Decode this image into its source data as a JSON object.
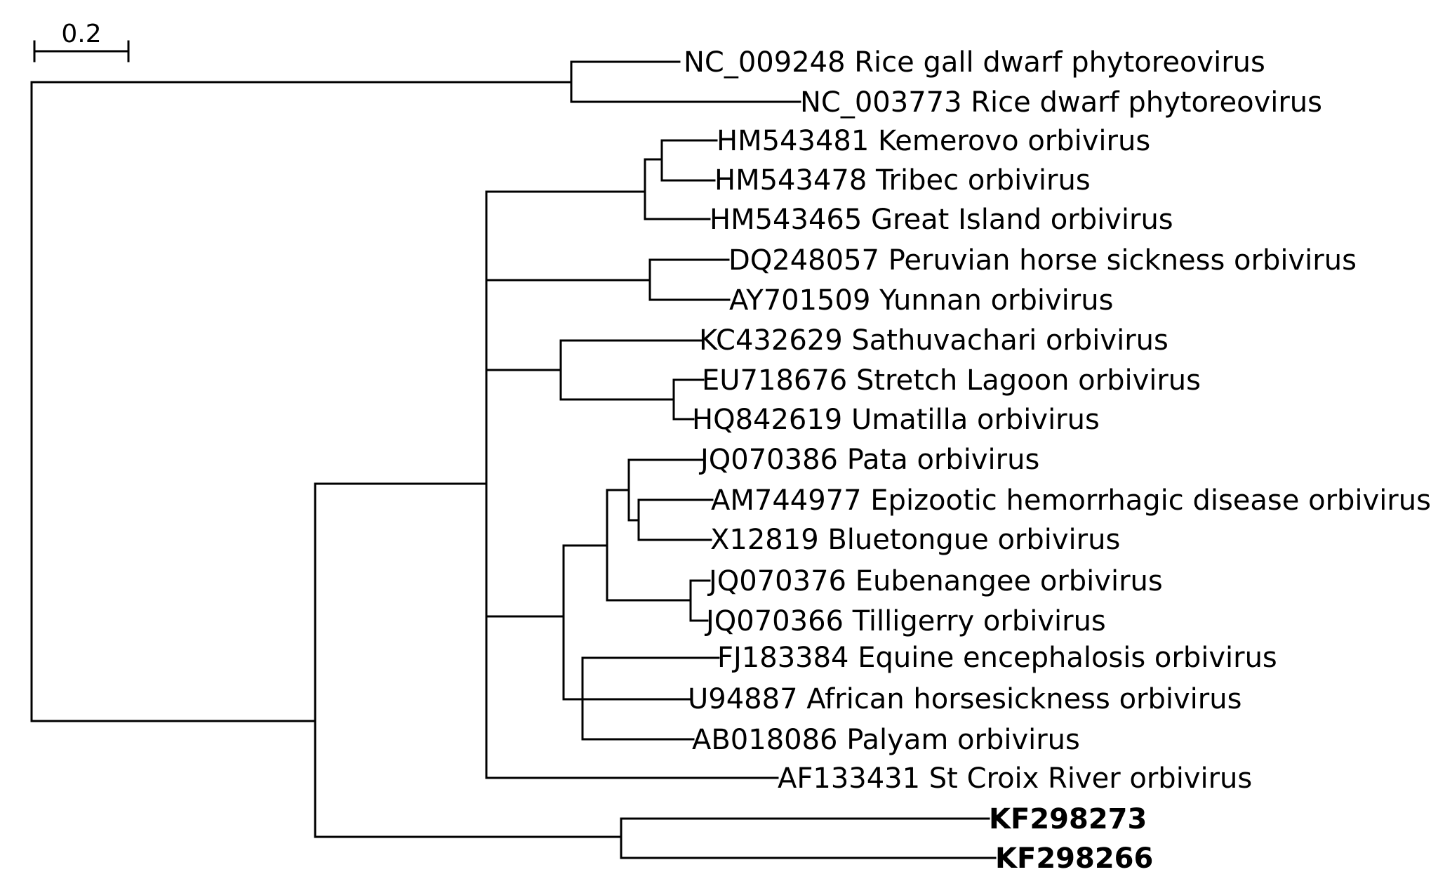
{
  "scale_bar": {
    "label": "0.2"
  },
  "leaves": [
    {
      "label": "NC_009248 Rice gall dwarf phytoreovirus",
      "bold": false
    },
    {
      "label": "NC_003773 Rice dwarf phytoreovirus",
      "bold": false
    },
    {
      "label": "HM543481 Kemerovo orbivirus",
      "bold": false
    },
    {
      "label": "HM543478 Tribec orbivirus",
      "bold": false
    },
    {
      "label": "HM543465 Great Island orbivirus",
      "bold": false
    },
    {
      "label": "DQ248057 Peruvian horse sickness orbivirus",
      "bold": false
    },
    {
      "label": "AY701509 Yunnan orbivirus",
      "bold": false
    },
    {
      "label": "KC432629 Sathuvachari orbivirus",
      "bold": false
    },
    {
      "label": "EU718676 Stretch Lagoon orbivirus",
      "bold": false
    },
    {
      "label": "HQ842619 Umatilla orbivirus",
      "bold": false
    },
    {
      "label": "JQ070386 Pata orbivirus",
      "bold": false
    },
    {
      "label": "AM744977 Epizootic hemorrhagic disease orbivirus",
      "bold": false
    },
    {
      "label": "X12819 Bluetongue orbivirus",
      "bold": false
    },
    {
      "label": "JQ070376 Eubenangee orbivirus",
      "bold": false
    },
    {
      "label": "JQ070366 Tilligerry orbivirus",
      "bold": false
    },
    {
      "label": "FJ183384 Equine encephalosis orbivirus",
      "bold": false
    },
    {
      "label": "U94887 African horsesickness orbivirus",
      "bold": false
    },
    {
      "label": "AB018086 Palyam orbivirus",
      "bold": false
    },
    {
      "label": "AF133431 St Croix River orbivirus",
      "bold": false
    },
    {
      "label": "KF298273",
      "bold": true
    },
    {
      "label": "KF298266",
      "bold": true
    }
  ]
}
